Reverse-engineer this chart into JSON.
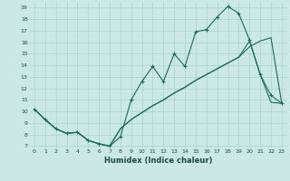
{
  "xlabel": "Humidex (Indice chaleur)",
  "background_color": "#cbe8e3",
  "grid_color": "#a8d5cc",
  "line_color": "#1a6b5a",
  "xlim": [
    -0.5,
    23.5
  ],
  "ylim": [
    6.8,
    19.5
  ],
  "xticks": [
    0,
    1,
    2,
    3,
    4,
    5,
    6,
    7,
    8,
    9,
    10,
    11,
    12,
    13,
    14,
    15,
    16,
    17,
    18,
    19,
    20,
    21,
    22,
    23
  ],
  "yticks": [
    7,
    8,
    9,
    10,
    11,
    12,
    13,
    14,
    15,
    16,
    17,
    18,
    19
  ],
  "line1_x": [
    0,
    1,
    2,
    3,
    4,
    5,
    6,
    7,
    8,
    9,
    10,
    11,
    12,
    13,
    14,
    15,
    16,
    17,
    18,
    19,
    20,
    21,
    22,
    23
  ],
  "line1_y": [
    10.2,
    9.3,
    8.5,
    8.1,
    8.2,
    7.5,
    7.2,
    7.0,
    7.8,
    11.0,
    12.6,
    13.9,
    12.6,
    15.0,
    13.9,
    16.9,
    17.1,
    18.2,
    19.1,
    18.5,
    16.2,
    13.2,
    11.4,
    10.7
  ],
  "line2_x": [
    0,
    1,
    2,
    3,
    4,
    5,
    6,
    7,
    8,
    9,
    10,
    11,
    12,
    13,
    14,
    15,
    16,
    17,
    18,
    19,
    20,
    21,
    22,
    23
  ],
  "line2_y": [
    10.2,
    9.3,
    8.5,
    8.1,
    8.2,
    7.5,
    7.2,
    7.0,
    8.5,
    9.3,
    9.9,
    10.5,
    11.0,
    11.6,
    12.1,
    12.7,
    13.2,
    13.7,
    14.2,
    14.7,
    15.6,
    16.1,
    16.4,
    10.7
  ],
  "line3_x": [
    0,
    1,
    2,
    3,
    4,
    5,
    6,
    7,
    8,
    9,
    10,
    11,
    12,
    13,
    14,
    15,
    16,
    17,
    18,
    19,
    20,
    21,
    22,
    23
  ],
  "line3_y": [
    10.2,
    9.3,
    8.5,
    8.1,
    8.2,
    7.5,
    7.2,
    7.0,
    8.5,
    9.3,
    9.9,
    10.5,
    11.0,
    11.6,
    12.1,
    12.7,
    13.2,
    13.7,
    14.2,
    14.7,
    16.1,
    13.2,
    10.8,
    10.7
  ]
}
